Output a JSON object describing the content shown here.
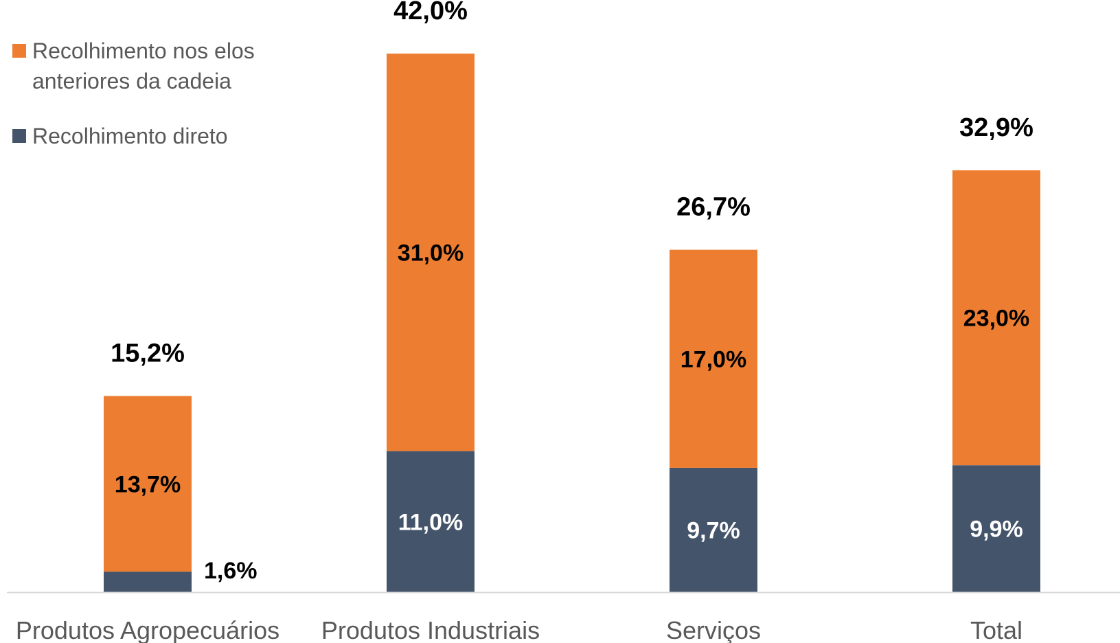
{
  "chart_data": {
    "type": "bar",
    "stacked": true,
    "categories": [
      "Produtos Agropecuários",
      "Produtos Industriais",
      "Serviços",
      "Total"
    ],
    "series": [
      {
        "name": "Recolhimento direto",
        "color": "#44546A",
        "values": [
          1.6,
          11.0,
          9.7,
          9.9
        ],
        "labels": [
          "1,6%",
          "11,0%",
          "9,7%",
          "9,9%"
        ]
      },
      {
        "name": "Recolhimento nos elos anteriores da cadeia",
        "color": "#ED7D31",
        "values": [
          13.7,
          31.0,
          17.0,
          23.0
        ],
        "labels": [
          "13,7%",
          "31,0%",
          "17,0%",
          "23,0%"
        ]
      }
    ],
    "totals": [
      15.2,
      42.0,
      26.7,
      32.9
    ],
    "total_labels": [
      "15,2%",
      "42,0%",
      "26,7%",
      "32,9%"
    ],
    "ylim": [
      0,
      42
    ],
    "grid": false,
    "legend_position": "top-left"
  }
}
